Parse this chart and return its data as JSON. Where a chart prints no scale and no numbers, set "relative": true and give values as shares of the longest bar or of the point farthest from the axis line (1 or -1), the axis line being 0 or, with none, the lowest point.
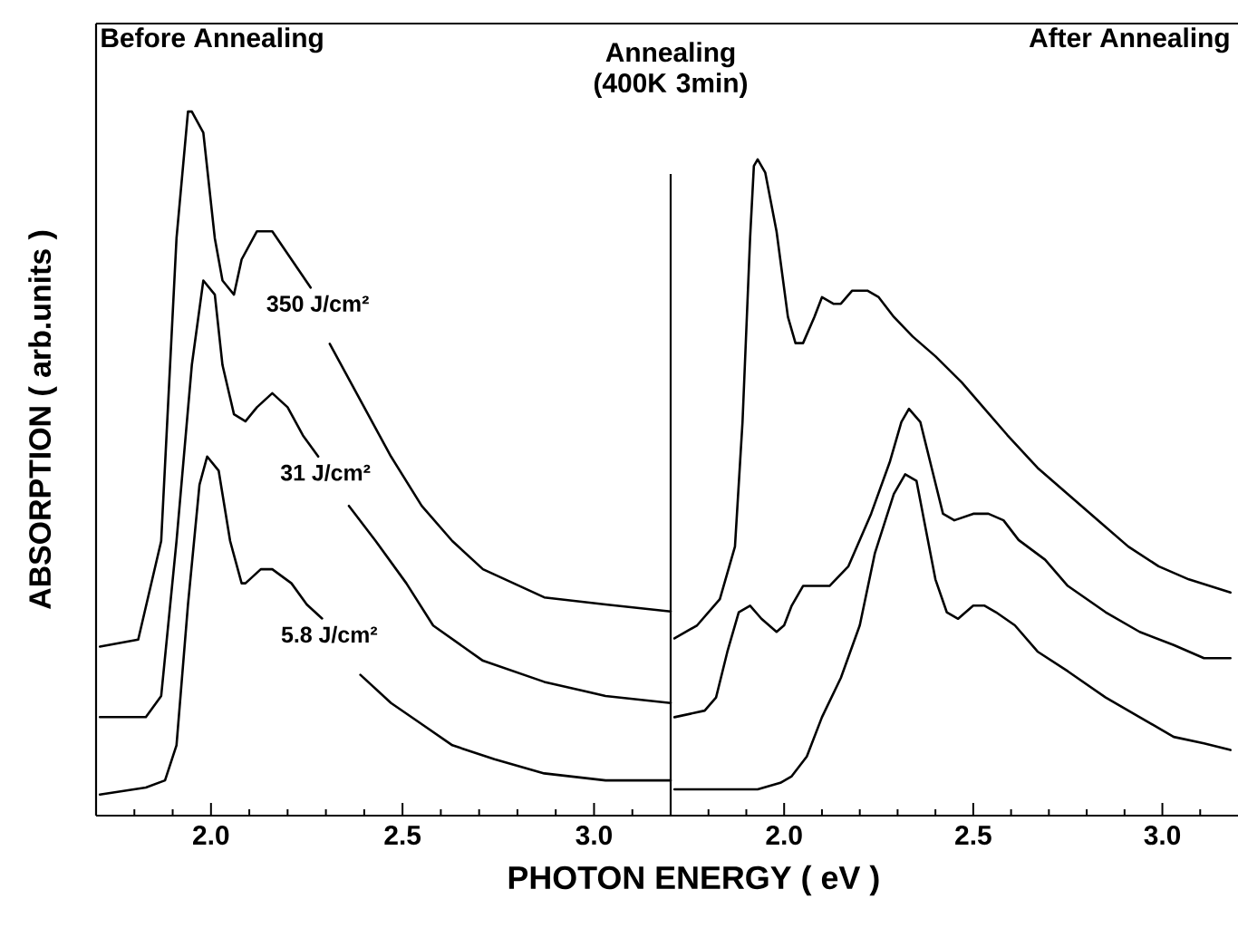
{
  "chart_data": [
    {
      "type": "line",
      "relative": true,
      "title": "Before Annealing",
      "xlabel": "PHOTON ENERGY ( eV )",
      "ylabel": "ABSORPTION ( arb.units )",
      "xlim": [
        1.7,
        3.2
      ],
      "xticks": [
        {
          "value": 1.8,
          "label": null
        },
        {
          "value": 1.9,
          "label": null
        },
        {
          "value": 2.0,
          "label": "2.0"
        },
        {
          "value": 2.1,
          "label": null
        },
        {
          "value": 2.2,
          "label": null
        },
        {
          "value": 2.3,
          "label": null
        },
        {
          "value": 2.4,
          "label": null
        },
        {
          "value": 2.5,
          "label": "2.5"
        },
        {
          "value": 2.6,
          "label": null
        },
        {
          "value": 2.7,
          "label": null
        },
        {
          "value": 2.8,
          "label": null
        },
        {
          "value": 2.9,
          "label": null
        },
        {
          "value": 3.0,
          "label": "3.0"
        },
        {
          "value": 3.1,
          "label": null
        }
      ],
      "series": [
        {
          "name": "350 J/cm²",
          "color": "#000000",
          "x": [
            1.71,
            1.81,
            1.87,
            1.91,
            1.94,
            1.95,
            1.98,
            2.01,
            2.03,
            2.06,
            2.08,
            2.12,
            2.16,
            2.21,
            2.26,
            2.29,
            2.31,
            2.39,
            2.47,
            2.55,
            2.63,
            2.71,
            2.87,
            3.03,
            3.2
          ],
          "values": [
            0.24,
            0.25,
            0.39,
            0.82,
            1.0,
            1.0,
            0.97,
            0.82,
            0.76,
            0.74,
            0.79,
            0.83,
            0.83,
            0.79,
            0.75,
            null,
            0.67,
            0.59,
            0.51,
            0.44,
            0.39,
            0.35,
            0.31,
            0.3,
            0.29
          ]
        },
        {
          "name": "31 J/cm²",
          "color": "#000000",
          "x": [
            1.71,
            1.83,
            1.87,
            1.91,
            1.95,
            1.98,
            2.01,
            2.03,
            2.06,
            2.09,
            2.12,
            2.16,
            2.2,
            2.24,
            2.28,
            2.32,
            2.36,
            2.43,
            2.51,
            2.58,
            2.71,
            2.87,
            3.03,
            3.2
          ],
          "values": [
            0.14,
            0.14,
            0.17,
            0.39,
            0.64,
            0.76,
            0.74,
            0.64,
            0.57,
            0.56,
            0.58,
            0.6,
            0.58,
            0.54,
            0.51,
            null,
            0.44,
            0.39,
            0.33,
            0.27,
            0.22,
            0.19,
            0.17,
            0.16
          ]
        },
        {
          "name": "5.8 J/cm²",
          "color": "#000000",
          "x": [
            1.71,
            1.83,
            1.88,
            1.91,
            1.94,
            1.97,
            1.99,
            2.02,
            2.05,
            2.08,
            2.09,
            2.13,
            2.16,
            2.21,
            2.25,
            2.29,
            2.34,
            2.39,
            2.47,
            2.55,
            2.63,
            2.74,
            2.87,
            3.03,
            3.2
          ],
          "values": [
            0.03,
            0.04,
            0.05,
            0.1,
            0.3,
            0.47,
            0.51,
            0.49,
            0.39,
            0.33,
            0.33,
            0.35,
            0.35,
            0.33,
            0.3,
            0.28,
            null,
            0.2,
            0.16,
            0.13,
            0.1,
            0.08,
            0.06,
            0.05,
            0.05
          ]
        }
      ]
    },
    {
      "type": "line",
      "relative": true,
      "title": "After Annealing",
      "annotations": [
        "Annealing (400K 3min)"
      ],
      "xlim": [
        1.7,
        3.2
      ],
      "xticks": [
        {
          "value": 1.8,
          "label": null
        },
        {
          "value": 1.9,
          "label": null
        },
        {
          "value": 2.0,
          "label": "2.0"
        },
        {
          "value": 2.1,
          "label": null
        },
        {
          "value": 2.2,
          "label": null
        },
        {
          "value": 2.3,
          "label": null
        },
        {
          "value": 2.4,
          "label": null
        },
        {
          "value": 2.5,
          "label": "2.5"
        },
        {
          "value": 2.6,
          "label": null
        },
        {
          "value": 2.7,
          "label": null
        },
        {
          "value": 2.8,
          "label": null
        },
        {
          "value": 2.9,
          "label": null
        },
        {
          "value": 3.0,
          "label": "3.0"
        },
        {
          "value": 3.1,
          "label": null
        }
      ],
      "series": [
        {
          "color": "#000000",
          "x": [
            1.71,
            1.77,
            1.83,
            1.87,
            1.89,
            1.91,
            1.92,
            1.93,
            1.95,
            1.98,
            2.01,
            2.03,
            2.05,
            2.08,
            2.1,
            2.13,
            2.15,
            2.18,
            2.22,
            2.25,
            2.29,
            2.34,
            2.4,
            2.47,
            2.53,
            2.59,
            2.67,
            2.75,
            2.83,
            2.91,
            2.99,
            3.07,
            3.18
          ],
          "values": [
            0.27,
            0.29,
            0.33,
            0.41,
            0.6,
            0.88,
            0.99,
            1.0,
            0.98,
            0.89,
            0.76,
            0.72,
            0.72,
            0.76,
            0.79,
            0.78,
            0.78,
            0.8,
            0.8,
            0.79,
            0.76,
            0.73,
            0.7,
            0.66,
            0.62,
            0.58,
            0.53,
            0.49,
            0.45,
            0.41,
            0.38,
            0.36,
            0.34
          ]
        },
        {
          "color": "#000000",
          "x": [
            1.71,
            1.79,
            1.82,
            1.85,
            1.88,
            1.91,
            1.94,
            1.98,
            2.0,
            2.02,
            2.05,
            2.08,
            2.12,
            2.17,
            2.23,
            2.28,
            2.31,
            2.33,
            2.36,
            2.39,
            2.42,
            2.45,
            2.5,
            2.54,
            2.58,
            2.62,
            2.69,
            2.75,
            2.85,
            2.94,
            3.03,
            3.11,
            3.18
          ],
          "values": [
            0.15,
            0.16,
            0.18,
            0.25,
            0.31,
            0.32,
            0.3,
            0.28,
            0.29,
            0.32,
            0.35,
            0.35,
            0.35,
            0.38,
            0.46,
            0.54,
            0.6,
            0.62,
            0.6,
            0.53,
            0.46,
            0.45,
            0.46,
            0.46,
            0.45,
            0.42,
            0.39,
            0.35,
            0.31,
            0.28,
            0.26,
            0.24,
            0.24
          ]
        },
        {
          "color": "#000000",
          "x": [
            1.71,
            1.8,
            1.93,
            1.99,
            2.02,
            2.06,
            2.1,
            2.15,
            2.2,
            2.24,
            2.29,
            2.32,
            2.35,
            2.37,
            2.4,
            2.43,
            2.46,
            2.5,
            2.53,
            2.56,
            2.61,
            2.67,
            2.75,
            2.85,
            2.94,
            3.03,
            3.11,
            3.18
          ],
          "values": [
            0.04,
            0.04,
            0.04,
            0.05,
            0.06,
            0.09,
            0.15,
            0.21,
            0.29,
            0.4,
            0.49,
            0.52,
            0.51,
            0.45,
            0.36,
            0.31,
            0.3,
            0.32,
            0.32,
            0.31,
            0.29,
            0.25,
            0.22,
            0.18,
            0.15,
            0.12,
            0.11,
            0.1
          ]
        }
      ]
    }
  ]
}
